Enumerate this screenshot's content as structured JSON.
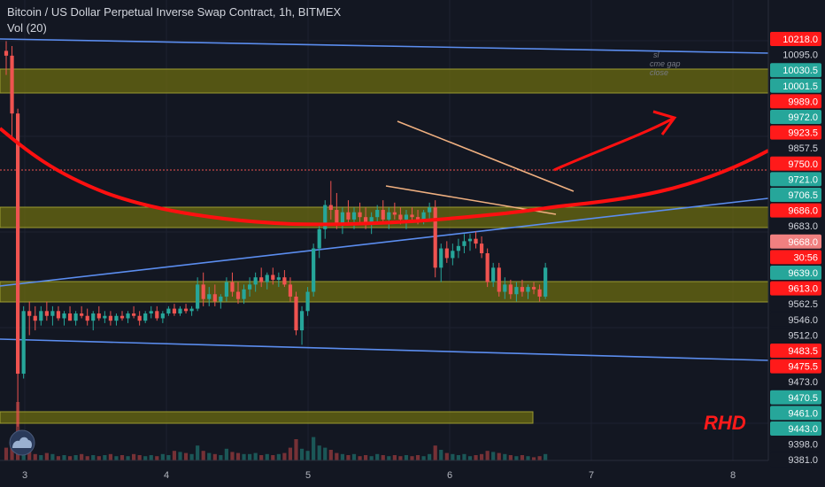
{
  "header": {
    "title": "Bitcoin / US Dollar Perpetual Inverse Swap Contract, 1h, BITMEX",
    "volume_label": "Vol (20)"
  },
  "annotations": {
    "note_lines": [
      "sl",
      "cme gap",
      "close"
    ],
    "signature": "RHD"
  },
  "colors": {
    "background": "#131722",
    "bull": "#26a69a",
    "bear": "#ef5350",
    "zone": "#6b6b10",
    "trendline": "#5b8def",
    "curve": "#ff1010",
    "wedge": "#f0b080"
  },
  "chart_data": {
    "type": "candlestick",
    "title": "Bitcoin / US Dollar Perpetual Inverse Swap Contract, 1h, BITMEX",
    "volume_indicator": "Vol (20)",
    "x_axis": {
      "tick_labels": [
        "3",
        "4",
        "5",
        "6",
        "7",
        "8"
      ]
    },
    "price_axis_labels": [
      {
        "text": "10218.0",
        "color": "#ff1a1a"
      },
      {
        "text": "10095.0",
        "color": "#d1d4dc"
      },
      {
        "text": "10030.5",
        "color": "#26a69a"
      },
      {
        "text": "10001.5",
        "color": "#26a69a"
      },
      {
        "text": "9989.0",
        "color": "#ff1a1a"
      },
      {
        "text": "9972.0",
        "color": "#26a69a"
      },
      {
        "text": "9923.5",
        "color": "#ff1a1a"
      },
      {
        "text": "9857.5",
        "color": "#d1d4dc"
      },
      {
        "text": "9750.0",
        "color": "#ff1a1a"
      },
      {
        "text": "9721.0",
        "color": "#26a69a"
      },
      {
        "text": "9706.5",
        "color": "#26a69a"
      },
      {
        "text": "9686.0",
        "color": "#ff1a1a"
      },
      {
        "text": "9683.0",
        "color": "#d1d4dc"
      },
      {
        "text": "9668.0",
        "color": "#f08080"
      },
      {
        "text": "30:56",
        "color": "#ff1a1a"
      },
      {
        "text": "9639.0",
        "color": "#26a69a"
      },
      {
        "text": "9613.0",
        "color": "#ff1a1a"
      },
      {
        "text": "9562.5",
        "color": "#d1d4dc"
      },
      {
        "text": "9546.0",
        "color": "#d1d4dc"
      },
      {
        "text": "9512.0",
        "color": "#d1d4dc"
      },
      {
        "text": "9483.5",
        "color": "#ff1a1a"
      },
      {
        "text": "9475.5",
        "color": "#ff1a1a"
      },
      {
        "text": "9473.0",
        "color": "#d1d4dc"
      },
      {
        "text": "9470.5",
        "color": "#26a69a"
      },
      {
        "text": "9461.0",
        "color": "#26a69a"
      },
      {
        "text": "9443.0",
        "color": "#26a69a"
      },
      {
        "text": "9398.0",
        "color": "#d1d4dc"
      },
      {
        "text": "9381.0",
        "color": "#d1d4dc"
      }
    ],
    "candles": [
      [
        10230,
        10250,
        10180,
        10220
      ],
      [
        10220,
        10240,
        10050,
        10100
      ],
      [
        10100,
        10110,
        9450,
        9560
      ],
      [
        9560,
        9700,
        9550,
        9690
      ],
      [
        9690,
        9710,
        9640,
        9680
      ],
      [
        9680,
        9700,
        9650,
        9670
      ],
      [
        9670,
        9700,
        9660,
        9690
      ],
      [
        9690,
        9710,
        9670,
        9680
      ],
      [
        9680,
        9700,
        9660,
        9690
      ],
      [
        9690,
        9700,
        9670,
        9675
      ],
      [
        9675,
        9690,
        9660,
        9685
      ],
      [
        9685,
        9700,
        9670,
        9670
      ],
      [
        9670,
        9690,
        9660,
        9685
      ],
      [
        9685,
        9700,
        9675,
        9680
      ],
      [
        9680,
        9695,
        9660,
        9670
      ],
      [
        9670,
        9690,
        9650,
        9685
      ],
      [
        9685,
        9700,
        9670,
        9675
      ],
      [
        9675,
        9690,
        9665,
        9680
      ],
      [
        9680,
        9690,
        9660,
        9670
      ],
      [
        9670,
        9685,
        9660,
        9680
      ],
      [
        9680,
        9690,
        9670,
        9675
      ],
      [
        9675,
        9690,
        9665,
        9685
      ],
      [
        9685,
        9700,
        9675,
        9680
      ],
      [
        9680,
        9690,
        9660,
        9670
      ],
      [
        9670,
        9690,
        9665,
        9685
      ],
      [
        9685,
        9700,
        9675,
        9690
      ],
      [
        9690,
        9700,
        9670,
        9675
      ],
      [
        9675,
        9690,
        9665,
        9685
      ],
      [
        9685,
        9700,
        9680,
        9695
      ],
      [
        9695,
        9705,
        9680,
        9685
      ],
      [
        9685,
        9700,
        9680,
        9695
      ],
      [
        9695,
        9705,
        9685,
        9690
      ],
      [
        9690,
        9700,
        9680,
        9695
      ],
      [
        9695,
        9760,
        9690,
        9745
      ],
      [
        9745,
        9770,
        9700,
        9715
      ],
      [
        9715,
        9740,
        9700,
        9725
      ],
      [
        9725,
        9745,
        9700,
        9710
      ],
      [
        9710,
        9725,
        9695,
        9720
      ],
      [
        9720,
        9760,
        9710,
        9750
      ],
      [
        9750,
        9770,
        9720,
        9730
      ],
      [
        9730,
        9750,
        9705,
        9715
      ],
      [
        9715,
        9745,
        9705,
        9735
      ],
      [
        9735,
        9760,
        9720,
        9745
      ],
      [
        9745,
        9770,
        9730,
        9760
      ],
      [
        9760,
        9780,
        9740,
        9750
      ],
      [
        9750,
        9770,
        9735,
        9765
      ],
      [
        9765,
        9780,
        9745,
        9755
      ],
      [
        9755,
        9770,
        9740,
        9760
      ],
      [
        9760,
        9775,
        9740,
        9745
      ],
      [
        9745,
        9760,
        9710,
        9720
      ],
      [
        9720,
        9730,
        9640,
        9650
      ],
      [
        9650,
        9700,
        9620,
        9690
      ],
      [
        9690,
        9740,
        9680,
        9730
      ],
      [
        9730,
        9830,
        9720,
        9820
      ],
      [
        9820,
        9870,
        9800,
        9860
      ],
      [
        9860,
        9920,
        9840,
        9910
      ],
      [
        9910,
        9960,
        9880,
        9900
      ],
      [
        9900,
        9935,
        9860,
        9870
      ],
      [
        9870,
        9905,
        9850,
        9895
      ],
      [
        9895,
        9920,
        9870,
        9880
      ],
      [
        9880,
        9905,
        9860,
        9895
      ],
      [
        9895,
        9915,
        9870,
        9885
      ],
      [
        9885,
        9905,
        9860,
        9870
      ],
      [
        9870,
        9895,
        9850,
        9885
      ],
      [
        9885,
        9910,
        9870,
        9900
      ],
      [
        9900,
        9920,
        9870,
        9880
      ],
      [
        9880,
        9905,
        9860,
        9895
      ],
      [
        9895,
        9915,
        9880,
        9890
      ],
      [
        9890,
        9905,
        9870,
        9880
      ],
      [
        9880,
        9900,
        9860,
        9890
      ],
      [
        9890,
        9905,
        9875,
        9885
      ],
      [
        9885,
        9900,
        9870,
        9880
      ],
      [
        9880,
        9900,
        9870,
        9895
      ],
      [
        9895,
        9915,
        9880,
        9905
      ],
      [
        9905,
        9920,
        9760,
        9780
      ],
      [
        9780,
        9830,
        9750,
        9820
      ],
      [
        9820,
        9835,
        9790,
        9800
      ],
      [
        9800,
        9830,
        9785,
        9815
      ],
      [
        9815,
        9840,
        9800,
        9825
      ],
      [
        9825,
        9850,
        9810,
        9835
      ],
      [
        9835,
        9850,
        9815,
        9840
      ],
      [
        9840,
        9855,
        9820,
        9830
      ],
      [
        9830,
        9845,
        9800,
        9810
      ],
      [
        9810,
        9820,
        9740,
        9750
      ],
      [
        9750,
        9790,
        9740,
        9780
      ],
      [
        9780,
        9790,
        9720,
        9730
      ],
      [
        9730,
        9760,
        9715,
        9745
      ],
      [
        9745,
        9755,
        9715,
        9725
      ],
      [
        9725,
        9750,
        9710,
        9740
      ],
      [
        9740,
        9755,
        9720,
        9730
      ],
      [
        9730,
        9745,
        9715,
        9740
      ],
      [
        9740,
        9750,
        9725,
        9735
      ],
      [
        9735,
        9745,
        9710,
        9720
      ],
      [
        9720,
        9790,
        9715,
        9780
      ]
    ],
    "volumes": [
      12,
      14,
      55,
      26,
      8,
      6,
      5,
      7,
      6,
      4,
      5,
      4,
      5,
      6,
      4,
      5,
      4,
      5,
      6,
      4,
      5,
      4,
      6,
      5,
      4,
      5,
      4,
      6,
      5,
      9,
      8,
      7,
      6,
      14,
      9,
      7,
      6,
      5,
      11,
      8,
      7,
      6,
      6,
      7,
      5,
      6,
      5,
      6,
      7,
      12,
      20,
      11,
      9,
      22,
      14,
      12,
      10,
      7,
      6,
      5,
      6,
      4,
      5,
      4,
      6,
      5,
      4,
      5,
      4,
      5,
      4,
      5,
      4,
      6,
      14,
      10,
      7,
      6,
      5,
      6,
      4,
      5,
      6,
      9,
      8,
      7,
      6,
      5,
      4,
      5,
      4,
      3,
      4,
      6
    ]
  }
}
